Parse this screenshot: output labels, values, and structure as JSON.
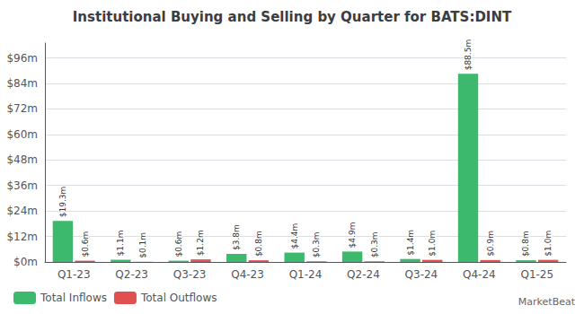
{
  "chart_data": {
    "type": "bar",
    "title": "Institutional Buying and Selling by Quarter for BATS:DINT",
    "categories": [
      "Q1-23",
      "Q2-23",
      "Q3-23",
      "Q4-23",
      "Q1-24",
      "Q2-24",
      "Q3-24",
      "Q4-24",
      "Q1-25"
    ],
    "series": [
      {
        "name": "Total Inflows",
        "color": "#3cb96d",
        "values": [
          19.3,
          1.1,
          0.6,
          3.8,
          4.4,
          4.9,
          1.4,
          88.5,
          0.8
        ],
        "value_labels": [
          "$19.3m",
          "$1.1m",
          "$0.6m",
          "$3.8m",
          "$4.4m",
          "$4.9m",
          "$1.4m",
          "$88.5m",
          "$0.8m"
        ]
      },
      {
        "name": "Total Outflows",
        "color": "#e05050",
        "values": [
          0.6,
          0.1,
          1.2,
          0.8,
          0.3,
          0.3,
          1.0,
          0.9,
          1.0
        ],
        "value_labels": [
          "$0.6m",
          "$0.1m",
          "$1.2m",
          "$0.8m",
          "$0.3m",
          "$0.3m",
          "$1.0m",
          "$0.9m",
          "$1.0m"
        ]
      }
    ],
    "ylim": [
      0,
      103
    ],
    "yticks": [
      {
        "value": 0,
        "label": "$0m"
      },
      {
        "value": 12,
        "label": "$12m"
      },
      {
        "value": 24,
        "label": "$24m"
      },
      {
        "value": 36,
        "label": "$36m"
      },
      {
        "value": 48,
        "label": "$48m"
      },
      {
        "value": 60,
        "label": "$60m"
      },
      {
        "value": 72,
        "label": "$72m"
      },
      {
        "value": 84,
        "label": "$84m"
      },
      {
        "value": 96,
        "label": "$96m"
      }
    ],
    "grid": true,
    "legend": "lower left",
    "data_labels": true,
    "annotations": [
      "MarketBeat"
    ]
  }
}
